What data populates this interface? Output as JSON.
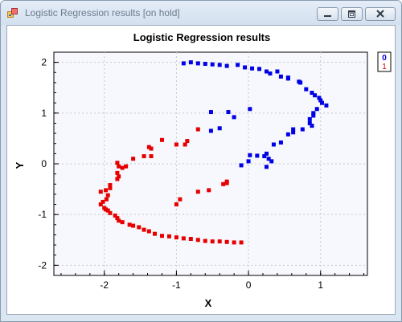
{
  "window": {
    "title": "Logistic Regression results [on hold]",
    "icons": [
      "app-icon",
      "minimize-icon",
      "maximize-icon",
      "close-icon"
    ]
  },
  "chart_data": {
    "type": "scatter",
    "title": "Logistic Regression results",
    "xlabel": "X",
    "ylabel": "Y",
    "xlim": [
      -2.7,
      1.65
    ],
    "ylim": [
      -2.2,
      2.2
    ],
    "xticks": [
      -2,
      -1,
      0,
      1
    ],
    "yticks": [
      -2,
      -1,
      0,
      1,
      2
    ],
    "grid": true,
    "legend_position": "top-right",
    "series": [
      {
        "name": "0",
        "color": "#0000e6",
        "points": [
          [
            -0.9,
            1.98
          ],
          [
            -0.8,
            2.0
          ],
          [
            -0.7,
            1.98
          ],
          [
            -0.6,
            1.97
          ],
          [
            -0.5,
            1.96
          ],
          [
            -0.4,
            1.95
          ],
          [
            -0.3,
            1.93
          ],
          [
            -0.15,
            1.95
          ],
          [
            -0.05,
            1.9
          ],
          [
            0.05,
            1.88
          ],
          [
            0.15,
            1.87
          ],
          [
            0.25,
            1.82
          ],
          [
            0.3,
            1.78
          ],
          [
            0.4,
            1.82
          ],
          [
            0.45,
            1.72
          ],
          [
            0.55,
            1.7
          ],
          [
            0.55,
            1.68
          ],
          [
            0.7,
            1.62
          ],
          [
            0.72,
            1.6
          ],
          [
            0.8,
            1.47
          ],
          [
            0.88,
            1.4
          ],
          [
            0.92,
            1.35
          ],
          [
            0.98,
            1.3
          ],
          [
            1.0,
            1.25
          ],
          [
            1.02,
            1.2
          ],
          [
            1.08,
            1.15
          ],
          [
            0.95,
            1.08
          ],
          [
            0.9,
            1.0
          ],
          [
            0.9,
            0.95
          ],
          [
            0.85,
            0.88
          ],
          [
            0.85,
            0.8
          ],
          [
            0.88,
            0.75
          ],
          [
            0.75,
            0.68
          ],
          [
            0.62,
            0.68
          ],
          [
            0.62,
            0.62
          ],
          [
            0.55,
            0.58
          ],
          [
            0.45,
            0.42
          ],
          [
            0.35,
            0.38
          ],
          [
            0.25,
            0.2
          ],
          [
            0.22,
            0.15
          ],
          [
            0.12,
            0.16
          ],
          [
            0.02,
            0.17
          ],
          [
            0.0,
            0.05
          ],
          [
            -0.1,
            -0.03
          ],
          [
            0.28,
            0.1
          ],
          [
            0.32,
            0.05
          ],
          [
            0.25,
            -0.06
          ],
          [
            0.02,
            1.08
          ],
          [
            -0.28,
            1.02
          ],
          [
            -0.2,
            0.92
          ],
          [
            -0.4,
            0.7
          ],
          [
            -0.52,
            0.65
          ],
          [
            -0.52,
            1.02
          ]
        ]
      },
      {
        "name": "1",
        "color": "#e60000",
        "points": [
          [
            -0.1,
            -1.55
          ],
          [
            -0.2,
            -1.55
          ],
          [
            -0.3,
            -1.54
          ],
          [
            -0.4,
            -1.53
          ],
          [
            -0.5,
            -1.53
          ],
          [
            -0.6,
            -1.52
          ],
          [
            -0.7,
            -1.5
          ],
          [
            -0.8,
            -1.48
          ],
          [
            -0.9,
            -1.47
          ],
          [
            -1.0,
            -1.45
          ],
          [
            -1.1,
            -1.43
          ],
          [
            -1.2,
            -1.42
          ],
          [
            -1.3,
            -1.38
          ],
          [
            -1.38,
            -1.33
          ],
          [
            -1.45,
            -1.3
          ],
          [
            -1.52,
            -1.25
          ],
          [
            -1.6,
            -1.22
          ],
          [
            -1.65,
            -1.2
          ],
          [
            -1.75,
            -1.15
          ],
          [
            -1.8,
            -1.12
          ],
          [
            -1.82,
            -1.07
          ],
          [
            -1.85,
            -1.02
          ],
          [
            -1.92,
            -0.97
          ],
          [
            -1.95,
            -0.92
          ],
          [
            -1.98,
            -0.9
          ],
          [
            -2.0,
            -0.87
          ],
          [
            -2.05,
            -0.8
          ],
          [
            -2.02,
            -0.75
          ],
          [
            -1.97,
            -0.7
          ],
          [
            -1.95,
            -0.62
          ],
          [
            -2.05,
            -0.55
          ],
          [
            -1.98,
            -0.52
          ],
          [
            -1.92,
            -0.48
          ],
          [
            -1.92,
            -0.42
          ],
          [
            -1.82,
            -0.3
          ],
          [
            -1.8,
            -0.25
          ],
          [
            -1.82,
            -0.18
          ],
          [
            -1.75,
            -0.08
          ],
          [
            -1.8,
            -0.05
          ],
          [
            -1.7,
            -0.05
          ],
          [
            -1.82,
            0.02
          ],
          [
            -1.6,
            0.1
          ],
          [
            -1.45,
            0.15
          ],
          [
            -1.35,
            0.15
          ],
          [
            -1.35,
            0.3
          ],
          [
            -1.38,
            0.33
          ],
          [
            -1.2,
            0.47
          ],
          [
            -1.0,
            0.38
          ],
          [
            -0.88,
            0.38
          ],
          [
            -0.85,
            0.45
          ],
          [
            -0.7,
            0.68
          ],
          [
            -0.3,
            -0.35
          ],
          [
            -0.3,
            -0.38
          ],
          [
            -0.35,
            -0.4
          ],
          [
            -0.55,
            -0.52
          ],
          [
            -0.7,
            -0.55
          ],
          [
            -0.95,
            -0.7
          ],
          [
            -1.0,
            -0.8
          ]
        ]
      }
    ]
  }
}
